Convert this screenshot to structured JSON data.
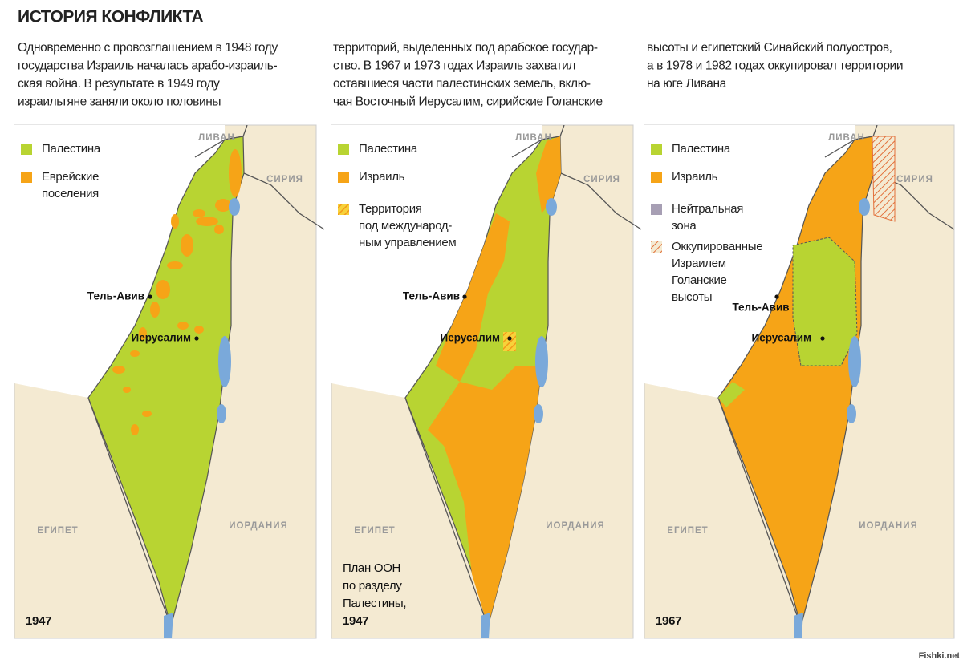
{
  "header": {
    "title": "ИСТОРИЯ КОНФЛИКТА"
  },
  "intro": {
    "columns": [
      [
        "Одновременно с провозглашением в 1948 году",
        "государства Израиль началась арабо-израиль-",
        "ская война. В результате в 1949 году",
        "израильтяне заняли около половины"
      ],
      [
        "территорий, выделенных под арабское государ-",
        "ство. В 1967 и 1973 годах Израиль захватил",
        "оставшиеся части палестинских земель, вклю-",
        "чая Восточный Иерусалим, сирийские Голанские"
      ],
      [
        "высоты и египетский Синайский полуостров,",
        "а в 1978 и 1982 годах оккупировал территории",
        "на юге Ливана"
      ]
    ]
  },
  "panels": [
    {
      "legend": [
        [
          "Палестина"
        ],
        [
          "Еврейские",
          "поселения"
        ]
      ],
      "labels": {
        "lebanon": "ЛИВАН",
        "syria": "СИРИЯ",
        "egypt": "ЕГИПЕТ",
        "jordan": "ИОРДАНИЯ",
        "tel_aviv": "Тель-Авив",
        "jerusalem": "Иерусалим"
      },
      "caption": [
        "1947"
      ]
    },
    {
      "legend": [
        [
          "Палестина"
        ],
        [
          "Израиль"
        ],
        [
          "Территория",
          "под международ-",
          "ным управлением"
        ]
      ],
      "labels": {
        "lebanon": "ЛИВАН",
        "syria": "СИРИЯ",
        "egypt": "ЕГИПЕТ",
        "jordan": "ИОРДАНИЯ",
        "tel_aviv": "Тель-Авив",
        "jerusalem": "Иерусалим"
      },
      "caption": [
        "План ООН",
        "по разделу",
        "Палестины,",
        "1947"
      ]
    },
    {
      "legend": [
        [
          "Палестина"
        ],
        [
          "Израиль"
        ],
        [
          "Нейтральная",
          "зона"
        ],
        [
          "Оккупированные",
          "Израилем",
          "Голанские",
          "высоты"
        ]
      ],
      "labels": {
        "lebanon": "ЛИВАН",
        "syria": "СИРИЯ",
        "egypt": "ЕГИПЕТ",
        "jordan": "ИОРДАНИЯ",
        "tel_aviv": "Тель-Авив",
        "jerusalem": "Иерусалим"
      },
      "caption": [
        "1967"
      ]
    }
  ],
  "watermark": "Fishki.net"
}
